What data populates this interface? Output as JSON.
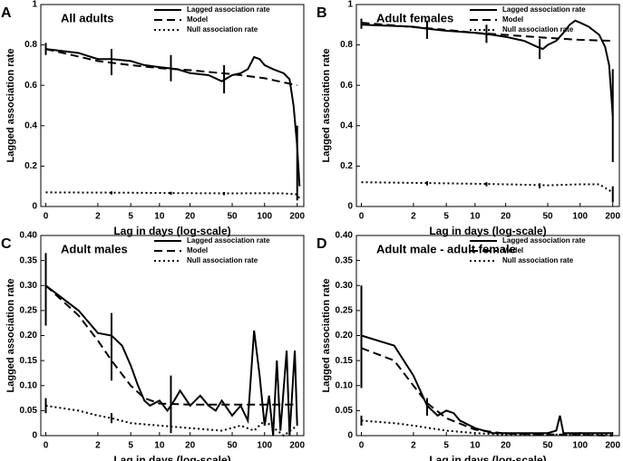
{
  "chart_data": [
    {
      "type": "line",
      "panel_label": "A",
      "title": "All adults",
      "xlabel": "Lag in days (log-scale)",
      "ylabel": "Lagged association rate",
      "xscale": "log",
      "xlim": [
        -0.1,
        230
      ],
      "ylim": [
        0,
        1
      ],
      "xticks": [
        0,
        2,
        5,
        10,
        20,
        50,
        100,
        200
      ],
      "yticks": [
        0,
        0.2,
        0.4,
        0.6,
        0.8,
        1
      ],
      "legend": "upper right",
      "series": [
        {
          "name": "Lagged association rate",
          "color": "#000000",
          "dash": "solid",
          "x": [
            0,
            1,
            2,
            3,
            5,
            7,
            10,
            15,
            20,
            30,
            40,
            50,
            60,
            70,
            80,
            90,
            100,
            120,
            150,
            170,
            185,
            200,
            210
          ],
          "values": [
            0.78,
            0.76,
            0.73,
            0.73,
            0.72,
            0.7,
            0.69,
            0.68,
            0.66,
            0.65,
            0.62,
            0.65,
            0.66,
            0.68,
            0.74,
            0.73,
            0.7,
            0.68,
            0.66,
            0.63,
            0.5,
            0.3,
            0.1
          ],
          "error_bars": {
            "x": [
              0,
              3,
              13,
              42,
              200
            ],
            "low": [
              0.75,
              0.65,
              0.62,
              0.56,
              0.07
            ],
            "high": [
              0.81,
              0.78,
              0.75,
              0.7,
              0.4
            ]
          }
        },
        {
          "name": "Model",
          "color": "#000000",
          "dash": "dash",
          "x": [
            0,
            2,
            5,
            10,
            20,
            50,
            100,
            200
          ],
          "values": [
            0.78,
            0.72,
            0.7,
            0.685,
            0.675,
            0.655,
            0.635,
            0.6
          ]
        },
        {
          "name": "Null association rate",
          "color": "#000000",
          "dash": "dot",
          "x": [
            0,
            5,
            20,
            50,
            100,
            150,
            200,
            210
          ],
          "values": [
            0.07,
            0.068,
            0.066,
            0.065,
            0.066,
            0.065,
            0.06,
            0.04
          ],
          "error_bars": {
            "x": [
              3,
              13,
              42,
              200
            ],
            "low": [
              0.06,
              0.058,
              0.056,
              0.03
            ],
            "high": [
              0.075,
              0.073,
              0.072,
              0.07
            ]
          }
        }
      ]
    },
    {
      "type": "line",
      "panel_label": "B",
      "title": "Adult females",
      "xlabel": "Lag in days (log-scale)",
      "ylabel": "Lagged association rate",
      "xscale": "log",
      "xlim": [
        -0.1,
        230
      ],
      "ylim": [
        0,
        1
      ],
      "xticks": [
        0,
        2,
        5,
        10,
        20,
        50,
        100,
        200
      ],
      "yticks": [
        0,
        0.2,
        0.4,
        0.6,
        0.8,
        1
      ],
      "legend": "upper right",
      "series": [
        {
          "name": "Lagged association rate",
          "color": "#000000",
          "dash": "solid",
          "x": [
            0,
            2,
            3,
            5,
            10,
            15,
            20,
            30,
            40,
            45,
            50,
            60,
            70,
            80,
            90,
            100,
            120,
            150,
            170,
            185,
            200
          ],
          "values": [
            0.9,
            0.89,
            0.88,
            0.87,
            0.86,
            0.85,
            0.84,
            0.82,
            0.79,
            0.78,
            0.8,
            0.82,
            0.86,
            0.9,
            0.92,
            0.91,
            0.89,
            0.85,
            0.79,
            0.7,
            0.45
          ],
          "error_bars": {
            "x": [
              0,
              3,
              13,
              42,
              200
            ],
            "low": [
              0.88,
              0.83,
              0.81,
              0.73,
              0.22
            ],
            "high": [
              0.93,
              0.92,
              0.9,
              0.83,
              0.68
            ]
          }
        },
        {
          "name": "Model",
          "color": "#000000",
          "dash": "dash",
          "x": [
            0,
            5,
            10,
            20,
            50,
            100,
            200
          ],
          "values": [
            0.91,
            0.875,
            0.86,
            0.85,
            0.835,
            0.825,
            0.82
          ]
        },
        {
          "name": "Null association rate",
          "color": "#000000",
          "dash": "dot",
          "x": [
            0,
            5,
            20,
            50,
            100,
            150,
            200
          ],
          "values": [
            0.12,
            0.115,
            0.11,
            0.105,
            0.11,
            0.11,
            0.07
          ],
          "error_bars": {
            "x": [
              3,
              13,
              42,
              200
            ],
            "low": [
              0.105,
              0.1,
              0.09,
              0.02
            ],
            "high": [
              0.125,
              0.12,
              0.115,
              0.1
            ]
          }
        }
      ]
    },
    {
      "type": "line",
      "panel_label": "C",
      "title": "Adult males",
      "xlabel": "Lag in days (log-scale)",
      "ylabel": "Lagged association rate",
      "xscale": "log",
      "xlim": [
        -0.1,
        230
      ],
      "ylim": [
        0,
        0.4
      ],
      "xticks": [
        0,
        2,
        5,
        10,
        20,
        50,
        100,
        200
      ],
      "yticks": [
        0,
        0.05,
        {
          "value": 0.1,
          "label": "0.10"
        },
        0.15,
        {
          "value": 0.2,
          "label": "0.20"
        },
        0.25,
        {
          "value": 0.3,
          "label": "0.30"
        },
        0.35,
        {
          "value": 0.4,
          "label": "0.40"
        }
      ],
      "legend": "upper right",
      "series": [
        {
          "name": "Lagged association rate",
          "color": "#000000",
          "dash": "solid",
          "x": [
            0,
            1,
            2,
            3,
            4,
            5,
            6,
            7,
            8,
            10,
            12,
            14,
            16,
            20,
            25,
            30,
            35,
            40,
            50,
            60,
            70,
            80,
            90,
            100,
            110,
            120,
            130,
            140,
            160,
            170,
            190,
            200
          ],
          "values": [
            0.3,
            0.25,
            0.205,
            0.2,
            0.18,
            0.14,
            0.1,
            0.07,
            0.06,
            0.07,
            0.05,
            0.07,
            0.09,
            0.06,
            0.08,
            0.06,
            0.05,
            0.07,
            0.04,
            0.06,
            0.03,
            0.21,
            0.12,
            0.02,
            0.08,
            0.0,
            0.15,
            0.01,
            0.17,
            0.0,
            0.17,
            0.02
          ],
          "error_bars": {
            "x": [
              0,
              3,
              13
            ],
            "low": [
              0.22,
              0.11,
              0.02
            ],
            "high": [
              0.365,
              0.245,
              0.12
            ]
          }
        },
        {
          "name": "Model",
          "color": "#000000",
          "dash": "dash",
          "x": [
            0,
            1,
            2,
            3,
            5,
            7,
            10,
            20,
            200
          ],
          "values": [
            0.3,
            0.24,
            0.19,
            0.15,
            0.1,
            0.075,
            0.064,
            0.062,
            0.062
          ]
        },
        {
          "name": "Null association rate",
          "color": "#000000",
          "dash": "dot",
          "x": [
            0,
            1,
            2,
            3,
            5,
            10,
            20,
            40,
            60,
            80,
            100,
            150,
            200
          ],
          "values": [
            0.06,
            0.05,
            0.04,
            0.035,
            0.025,
            0.02,
            0.015,
            0.01,
            0.02,
            0.01,
            0.03,
            0.0,
            0.02
          ],
          "error_bars": {
            "x": [
              0,
              3,
              13
            ],
            "low": [
              0.045,
              0.025,
              0.005
            ],
            "high": [
              0.075,
              0.045,
              0.025
            ]
          }
        }
      ]
    },
    {
      "type": "line",
      "panel_label": "D",
      "title": "Adult male - adult female",
      "xlabel": "Lag in days (log-scale)",
      "ylabel": "Lagged association rate",
      "xscale": "log",
      "xlim": [
        -0.1,
        230
      ],
      "ylim": [
        0,
        0.4
      ],
      "xticks": [
        0,
        2,
        5,
        10,
        20,
        50,
        100,
        200
      ],
      "yticks": [
        0,
        0.05,
        {
          "value": 0.1,
          "label": "0.10"
        },
        0.15,
        {
          "value": 0.2,
          "label": "0.20"
        },
        0.25,
        {
          "value": 0.3,
          "label": "0.30"
        },
        0.35,
        {
          "value": 0.4,
          "label": "0.40"
        }
      ],
      "legend": "upper right",
      "series": [
        {
          "name": "Lagged association rate",
          "color": "#000000",
          "dash": "solid",
          "x": [
            0,
            1,
            2,
            3,
            4,
            5,
            6,
            7,
            10,
            15,
            20,
            50,
            60,
            65,
            70,
            100,
            200
          ],
          "values": [
            0.2,
            0.18,
            0.12,
            0.06,
            0.04,
            0.05,
            0.045,
            0.03,
            0.015,
            0.005,
            0.005,
            0.005,
            0.01,
            0.04,
            0.005,
            0.005,
            0.005
          ],
          "error_bars": {
            "x": [
              0,
              3
            ],
            "low": [
              0.095,
              0.04
            ],
            "high": [
              0.3,
              0.075
            ]
          }
        },
        {
          "name": "Model",
          "color": "#000000",
          "dash": "dash",
          "x": [
            0,
            1,
            2,
            3,
            5,
            10,
            20,
            200
          ],
          "values": [
            0.175,
            0.15,
            0.1,
            0.065,
            0.035,
            0.012,
            0.004,
            0.0
          ]
        },
        {
          "name": "Null association rate",
          "color": "#000000",
          "dash": "dot",
          "x": [
            0,
            1,
            2,
            5,
            10,
            20,
            200
          ],
          "values": [
            0.03,
            0.025,
            0.02,
            0.01,
            0.005,
            0.002,
            0.002
          ],
          "error_bars": {
            "x": [
              0
            ],
            "low": [
              0.02
            ],
            "high": [
              0.04
            ]
          }
        }
      ]
    }
  ]
}
